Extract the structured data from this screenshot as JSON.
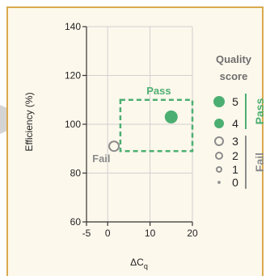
{
  "chart_data": {
    "type": "scatter",
    "title": "",
    "xlabel": "ΔC",
    "xlabel_subscript": "q",
    "ylabel": "Efficiency (%)",
    "xlim": [
      -5,
      20
    ],
    "ylim": [
      60,
      140
    ],
    "xticks": [
      -5,
      0,
      10,
      20
    ],
    "xtick_labels": [
      "-5",
      "0",
      "10",
      "20"
    ],
    "yticks": [
      60,
      80,
      100,
      120,
      140
    ],
    "ytick_labels": [
      "60",
      "80",
      "100",
      "120",
      "140"
    ],
    "grid": true,
    "points": [
      {
        "x": 15,
        "y": 103,
        "quality_score": 5,
        "status": "Pass"
      },
      {
        "x": 1.5,
        "y": 91,
        "quality_score": 3,
        "status": "Fail"
      }
    ],
    "regions": [
      {
        "label": "Pass",
        "x_range": [
          3,
          20
        ],
        "y_range": [
          89,
          110
        ],
        "style": "dashed",
        "color": "#4caf72"
      }
    ],
    "annotations": [
      {
        "text": "Fail",
        "x": -1.5,
        "y": 84.5,
        "color": "#8c8c8c"
      }
    ],
    "legend": {
      "title_line1": "Quality",
      "title_line2": "score",
      "placement": "right",
      "pass_label": "Pass",
      "fail_label": "Fail",
      "entries": [
        {
          "label": "5",
          "style": "filled",
          "color": "#4caf72",
          "radius": 7
        },
        {
          "label": "4",
          "style": "filled",
          "color": "#4caf72",
          "radius": 6
        },
        {
          "label": "3",
          "style": "hollow",
          "color": "#8c8c8c",
          "radius": 5
        },
        {
          "label": "2",
          "style": "hollow",
          "color": "#8c8c8c",
          "radius": 4
        },
        {
          "label": "1",
          "style": "hollow",
          "color": "#8c8c8c",
          "radius": 3
        },
        {
          "label": "0",
          "style": "filled",
          "color": "#9a9a9a",
          "radius": 2
        }
      ]
    },
    "colors": {
      "pass": "#4caf72",
      "fail": "#8c8c8c",
      "frame": "#d9a94e",
      "background": "#fdf8ec",
      "axis": "#333333",
      "grid": "#d0d0d0"
    }
  }
}
